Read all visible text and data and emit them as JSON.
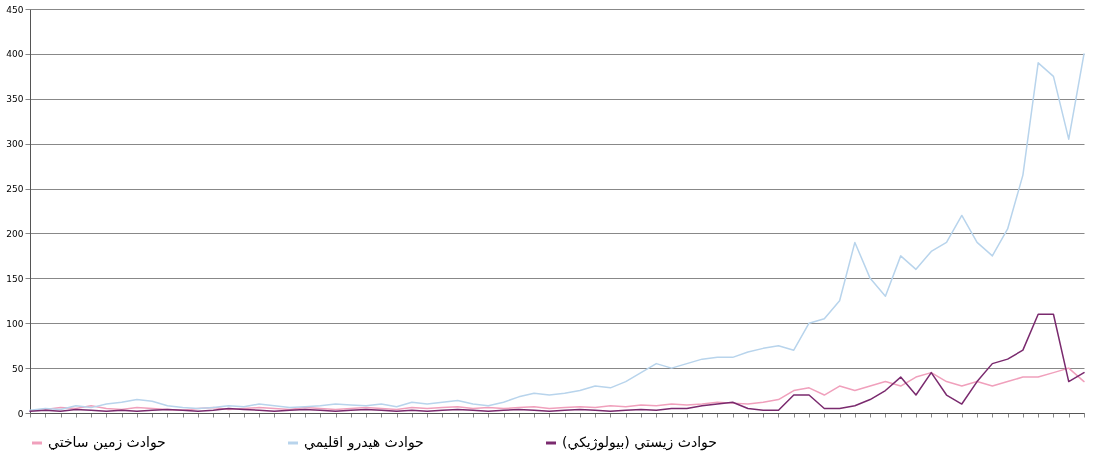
{
  "chart_data": {
    "type": "line",
    "categories": [
      null,
      null,
      null,
      null,
      null,
      null,
      null,
      null,
      null,
      null,
      null,
      null,
      null,
      null,
      null,
      null,
      null,
      null,
      null,
      null,
      null,
      null,
      null,
      null,
      null,
      null,
      null,
      null,
      null,
      null,
      null,
      null,
      null,
      null,
      null,
      null,
      null,
      null,
      null,
      null,
      null,
      null,
      null,
      null,
      null,
      null,
      null,
      null,
      null,
      null,
      null,
      null,
      null,
      null,
      null,
      null,
      null,
      null,
      null,
      null,
      null,
      null,
      null,
      null,
      null,
      null,
      null,
      null,
      null,
      null
    ],
    "series": [
      {
        "name": "حوادث زمين ساختي",
        "color": "#f0a0bc",
        "values": [
          null,
          4,
          6,
          5,
          8,
          5,
          4,
          6,
          5,
          4,
          3,
          5,
          6,
          4,
          5,
          6,
          5,
          4,
          6,
          5,
          4,
          5,
          6,
          5,
          4,
          6,
          5,
          6,
          7,
          5,
          6,
          5,
          6,
          7,
          5,
          6,
          7,
          6,
          8,
          7,
          9,
          8,
          10,
          9,
          10,
          12,
          11,
          10,
          12,
          15,
          25,
          28,
          20,
          30,
          25,
          30,
          35,
          30,
          40,
          45,
          35,
          30,
          35,
          30,
          35,
          40,
          40,
          45,
          50,
          35
        ]
      },
      {
        "name": "حوادث هيدرو اقليمي",
        "color": "#b8d4ec",
        "values": [
          3,
          5,
          4,
          8,
          6,
          10,
          12,
          15,
          13,
          8,
          6,
          5,
          6,
          8,
          7,
          10,
          8,
          6,
          7,
          8,
          10,
          9,
          8,
          10,
          7,
          12,
          10,
          12,
          14,
          10,
          8,
          12,
          18,
          22,
          20,
          22,
          25,
          30,
          28,
          35,
          45,
          55,
          50,
          55,
          60,
          62,
          62,
          68,
          72,
          75,
          70,
          100,
          105,
          125,
          190,
          150,
          130,
          175,
          160,
          180,
          190,
          220,
          190,
          175,
          205,
          265,
          390,
          375,
          305,
          400
        ]
      },
      {
        "name": "حوادث زيستي (بيولوژيكي)",
        "color": "#7a2a6e",
        "values": [
          2,
          3,
          2,
          4,
          3,
          2,
          3,
          2,
          3,
          4,
          3,
          2,
          3,
          5,
          4,
          3,
          2,
          3,
          4,
          3,
          2,
          3,
          4,
          3,
          2,
          3,
          2,
          3,
          4,
          3,
          2,
          3,
          4,
          3,
          2,
          3,
          4,
          3,
          2,
          3,
          4,
          3,
          5,
          5,
          8,
          10,
          12,
          5,
          3,
          3,
          20,
          20,
          5,
          5,
          8,
          15,
          25,
          40,
          20,
          45,
          20,
          10,
          35,
          55,
          60,
          70,
          110,
          110,
          35,
          45
        ]
      }
    ],
    "ylim": [
      0,
      450
    ],
    "yticks": [
      0,
      50,
      100,
      150,
      200,
      250,
      300,
      350,
      400,
      450
    ],
    "grid": "y",
    "legend": "bottom",
    "tick_labels": "y"
  }
}
